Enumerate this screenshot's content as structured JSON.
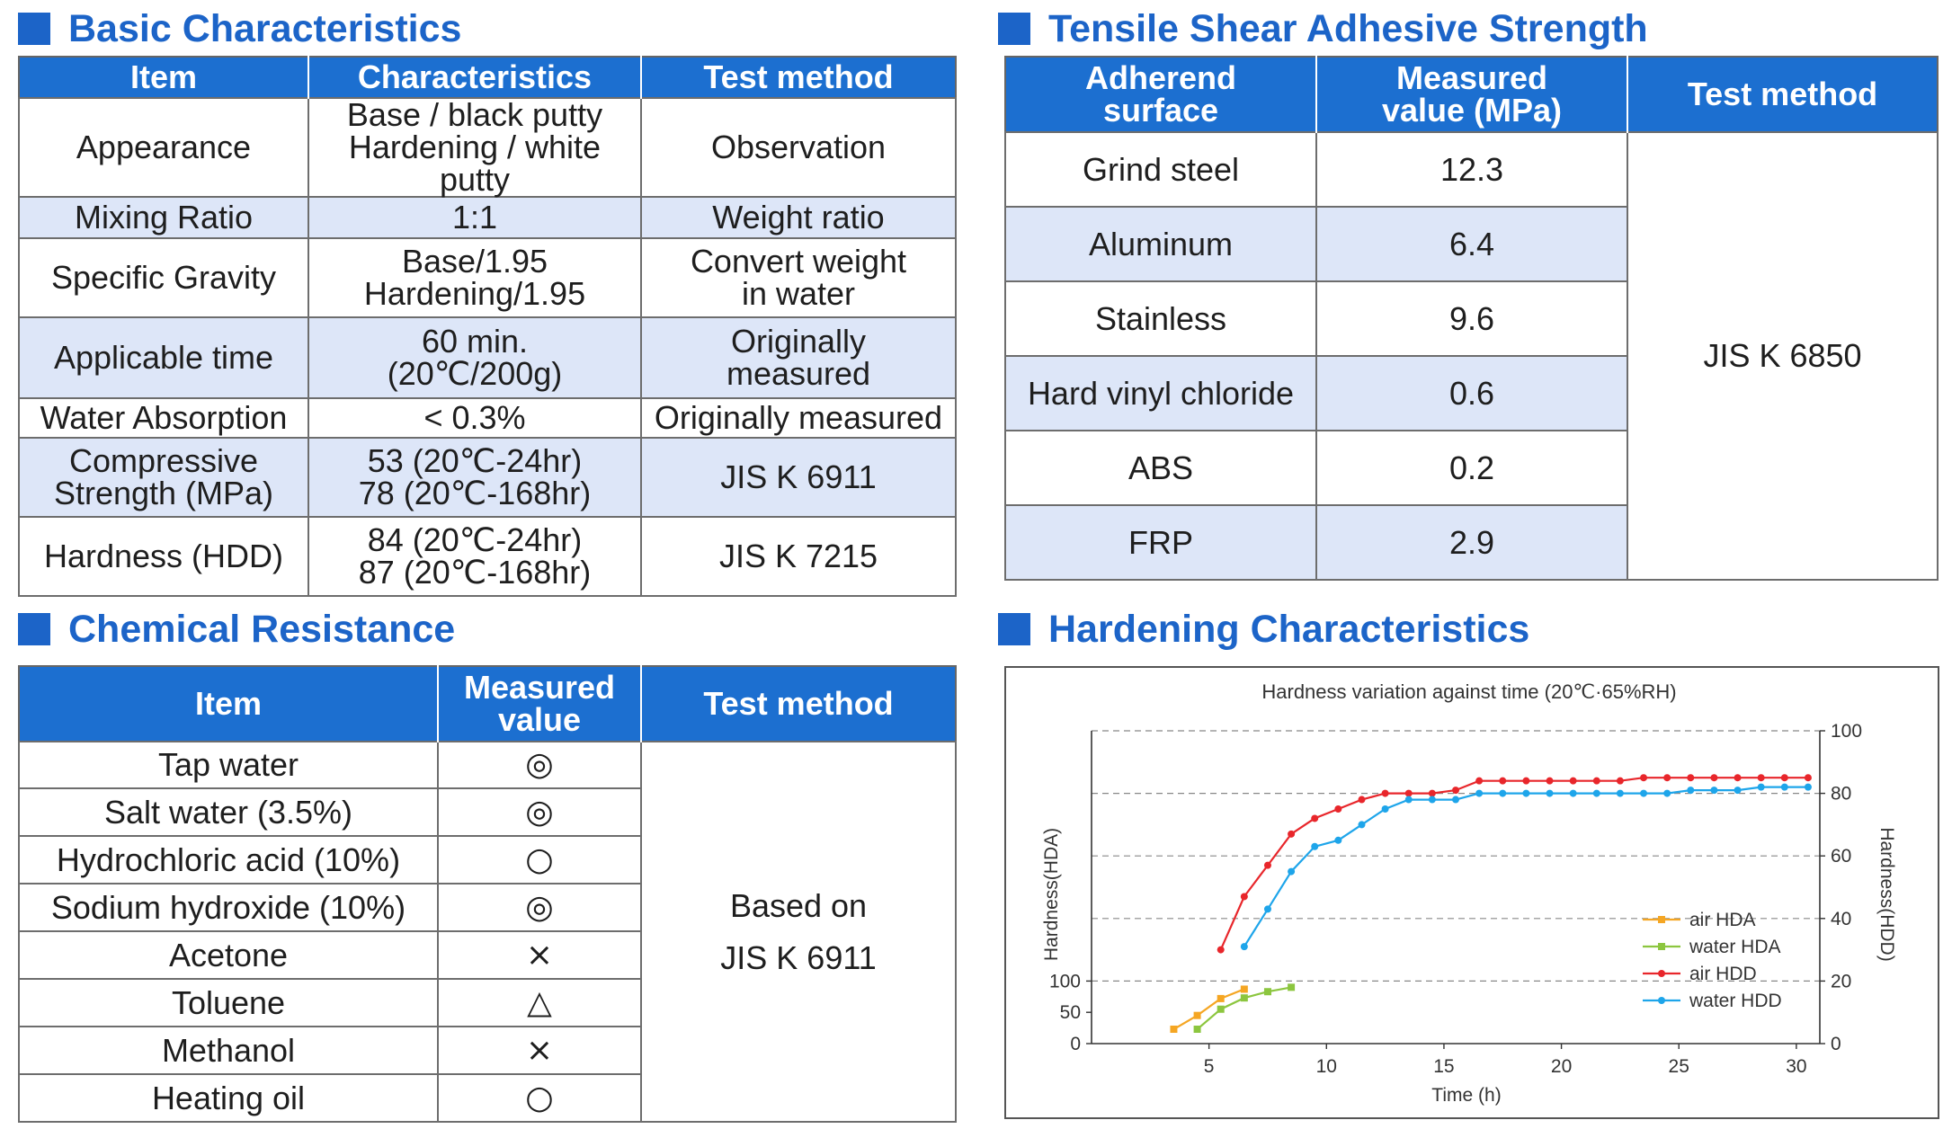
{
  "basic": {
    "title": "Basic Characteristics",
    "headers": [
      "Item",
      "Characteristics",
      "Test method"
    ],
    "rows": [
      {
        "item": "Appearance",
        "value": "Base / black putty\nHardening / white putty",
        "method": "Observation"
      },
      {
        "item": "Mixing Ratio",
        "value": "1:1",
        "method": "Weight ratio"
      },
      {
        "item": "Specific Gravity",
        "value": "Base/1.95\nHardening/1.95",
        "method": "Convert weight\nin water"
      },
      {
        "item": "Applicable time",
        "value": "60 min.\n(20℃/200g)",
        "method": "Originally\nmeasured"
      },
      {
        "item": "Water Absorption",
        "value": "< 0.3%",
        "method": "Originally measured"
      },
      {
        "item": "Compressive\nStrength (MPa)",
        "value": "53 (20℃-24hr)\n78 (20℃-168hr)",
        "method": "JIS K 6911"
      },
      {
        "item": "Hardness (HDD)",
        "value": "84 (20℃-24hr)\n87 (20℃-168hr)",
        "method": "JIS K 7215"
      }
    ]
  },
  "tensile": {
    "title": "Tensile Shear Adhesive Strength",
    "headers": [
      "Adherend\nsurface",
      "Measured\nvalue (MPa)",
      "Test method"
    ],
    "rows": [
      {
        "surface": "Grind steel",
        "value": "12.3"
      },
      {
        "surface": "Aluminum",
        "value": "6.4"
      },
      {
        "surface": "Stainless",
        "value": "9.6"
      },
      {
        "surface": "Hard vinyl chloride",
        "value": "0.6"
      },
      {
        "surface": "ABS",
        "value": "0.2"
      },
      {
        "surface": "FRP",
        "value": "2.9"
      }
    ],
    "method": "JIS K 6850"
  },
  "chemical": {
    "title": "Chemical Resistance",
    "headers": [
      "Item",
      "Measured\nvalue",
      "Test method"
    ],
    "rows": [
      {
        "item": "Tap water",
        "value": "◎"
      },
      {
        "item": "Salt water (3.5%)",
        "value": "◎"
      },
      {
        "item": "Hydrochloric acid (10%)",
        "value": "○"
      },
      {
        "item": "Sodium hydroxide (10%)",
        "value": "◎"
      },
      {
        "item": "Acetone",
        "value": "×"
      },
      {
        "item": "Toluene",
        "value": "△"
      },
      {
        "item": "Methanol",
        "value": "×"
      },
      {
        "item": "Heating oil",
        "value": "○"
      }
    ],
    "method_line1": "Based on",
    "method_line2": "JIS K 6911"
  },
  "hardening": {
    "title": "Hardening Characteristics"
  },
  "colors": {
    "accent": "#1c64c8",
    "header_bg": "#1c6fd0",
    "row_shade": "#dde6f8",
    "air_hda": "#f5a623",
    "water_hda": "#8cc63f",
    "air_hdd": "#e8262b",
    "water_hdd": "#1ea5ea"
  },
  "chart_data": {
    "type": "line",
    "title": "Hardness variation against time (20℃·65%RH)",
    "xlabel": "Time (h)",
    "ylabel_left": "Hardness(HDA)",
    "ylabel_right": "Hardness(HDD)",
    "xlim": [
      0,
      31
    ],
    "xticks": [
      5,
      10,
      15,
      20,
      25,
      30
    ],
    "ylim_left": [
      0,
      500
    ],
    "yticks_left": [
      0,
      50,
      100
    ],
    "ylim_right": [
      0,
      100
    ],
    "yticks_right": [
      0,
      20,
      40,
      60,
      80,
      100
    ],
    "grid": "dashed horizontal at right-axis ticks",
    "legend": "right",
    "series": [
      {
        "name": "air HDA",
        "axis": "left",
        "color": "#f5a623",
        "x": [
          3.5,
          4.5,
          5.5,
          6.5
        ],
        "y": [
          23,
          45,
          72,
          87
        ]
      },
      {
        "name": "water HDA",
        "axis": "left",
        "color": "#8cc63f",
        "x": [
          4.5,
          5.5,
          6.5,
          7.5,
          8.5
        ],
        "y": [
          23,
          55,
          73,
          83,
          90
        ]
      },
      {
        "name": "air HDD",
        "axis": "right",
        "color": "#e8262b",
        "x": [
          5.5,
          6.5,
          7.5,
          8.5,
          9.5,
          10.5,
          11.5,
          12.5,
          13.5,
          14.5,
          15.5,
          16.5,
          17.5,
          18.5,
          19.5,
          20.5,
          21.5,
          22.5,
          23.5,
          24.5,
          25.5,
          26.5,
          27.5,
          28.5,
          29.5,
          30.5
        ],
        "y": [
          30,
          47,
          57,
          67,
          72,
          75,
          78,
          80,
          80,
          80,
          81,
          84,
          84,
          84,
          84,
          84,
          84,
          84,
          85,
          85,
          85,
          85,
          85,
          85,
          85,
          85
        ]
      },
      {
        "name": "water HDD",
        "axis": "right",
        "color": "#1ea5ea",
        "x": [
          6.5,
          7.5,
          8.5,
          9.5,
          10.5,
          11.5,
          12.5,
          13.5,
          14.5,
          15.5,
          16.5,
          17.5,
          18.5,
          19.5,
          20.5,
          21.5,
          22.5,
          23.5,
          24.5,
          25.5,
          26.5,
          27.5,
          28.5,
          29.5,
          30.5
        ],
        "y": [
          31,
          43,
          55,
          63,
          65,
          70,
          75,
          78,
          78,
          78,
          80,
          80,
          80,
          80,
          80,
          80,
          80,
          80,
          80,
          81,
          81,
          81,
          82,
          82,
          82
        ]
      }
    ]
  }
}
